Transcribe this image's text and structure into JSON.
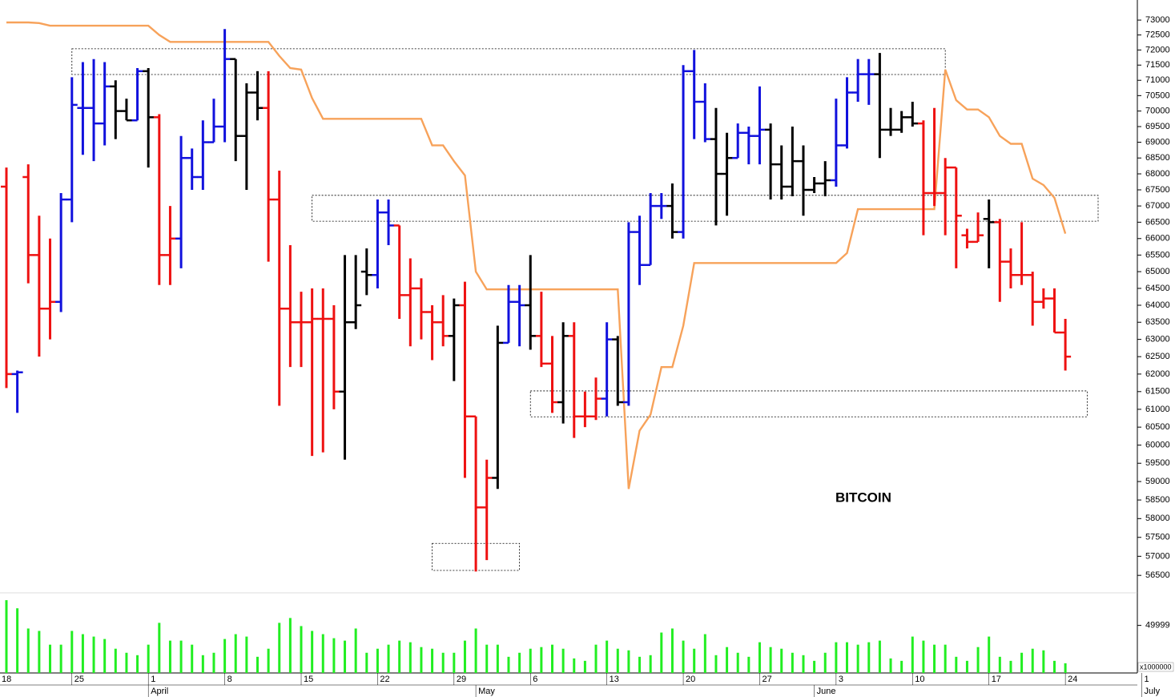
{
  "chart_data": {
    "type": "ohlc",
    "title": "BITCOIN",
    "yscale": "log",
    "ylim": [
      56150,
      73680
    ],
    "yticks": [
      73000,
      72500,
      72000,
      71500,
      71000,
      70500,
      70000,
      69500,
      69000,
      68500,
      68000,
      67500,
      67000,
      66500,
      66000,
      65500,
      65000,
      64500,
      64000,
      63500,
      63000,
      62500,
      62000,
      61500,
      61000,
      60500,
      60000,
      59500,
      59000,
      58500,
      58000,
      57500,
      57000,
      56500
    ],
    "x_ticks": [
      {
        "index": -1,
        "label": "18"
      },
      {
        "index": 6,
        "label": "25"
      },
      {
        "index": 13,
        "label": "1"
      },
      {
        "index": 20,
        "label": "8"
      },
      {
        "index": 27,
        "label": "15"
      },
      {
        "index": 34,
        "label": "22"
      },
      {
        "index": 41,
        "label": "29"
      },
      {
        "index": 48,
        "label": "6"
      },
      {
        "index": 55,
        "label": "13"
      },
      {
        "index": 62,
        "label": "20"
      },
      {
        "index": 69,
        "label": "27"
      },
      {
        "index": 76,
        "label": "3"
      },
      {
        "index": 83,
        "label": "10"
      },
      {
        "index": 90,
        "label": "17"
      },
      {
        "index": 97,
        "label": "24"
      },
      {
        "index": 104,
        "label": "1"
      }
    ],
    "months": [
      {
        "index": 13,
        "label": "April"
      },
      {
        "index": 43,
        "label": "May"
      },
      {
        "index": 74,
        "label": "June"
      },
      {
        "index": 104,
        "label": "July"
      }
    ],
    "open": [
      67600,
      62000,
      67900,
      65500,
      63900,
      64100,
      67200,
      70100,
      70100,
      69600,
      70800,
      70000,
      69700,
      71300,
      69800,
      65500,
      66000,
      68500,
      67900,
      69000,
      69500,
      71700,
      69200,
      70600,
      70100,
      67200,
      63900,
      63500,
      63500,
      63600,
      63600,
      61500,
      63500,
      65000,
      64900,
      66800,
      66400,
      64300,
      64500,
      63800,
      63500,
      63100,
      64000,
      60800,
      58300,
      59100,
      62900,
      64100,
      64000,
      63100,
      62300,
      61200,
      63100,
      60800,
      60800,
      61300,
      63000,
      61200,
      66200,
      65200,
      67000,
      67000,
      66200,
      71300,
      70300,
      69100,
      68000,
      68500,
      69300,
      69200,
      69400,
      68300,
      67600,
      68400,
      67500,
      67700,
      67800,
      68900,
      70600,
      71200,
      71200,
      69400,
      69400,
      69800,
      69600,
      67400,
      67400,
      68200,
      66100,
      65900,
      66600,
      66500,
      65300,
      64900,
      64900,
      64100,
      64200,
      63200
    ],
    "high": [
      68200,
      62100,
      68300,
      66700,
      66000,
      67400,
      71100,
      71600,
      71700,
      71600,
      71000,
      70400,
      71400,
      71400,
      69900,
      67000,
      69200,
      68800,
      69700,
      70400,
      72700,
      71700,
      70900,
      71300,
      71300,
      68100,
      65800,
      64400,
      64500,
      64500,
      64000,
      65500,
      65500,
      65700,
      67200,
      67200,
      66400,
      65400,
      64800,
      64000,
      64300,
      64200,
      64700,
      60800,
      59600,
      63400,
      64600,
      64600,
      65500,
      64400,
      63100,
      63500,
      63500,
      61500,
      61900,
      63500,
      63100,
      66500,
      66700,
      67400,
      67400,
      67700,
      71500,
      72000,
      70900,
      70100,
      69300,
      69600,
      69500,
      70800,
      69600,
      68900,
      69500,
      68900,
      67900,
      68400,
      70400,
      71100,
      71700,
      71700,
      71900,
      70100,
      70000,
      70300,
      69700,
      70100,
      68500,
      68200,
      66300,
      66800,
      67200,
      66600,
      65700,
      66500,
      65000,
      64500,
      64500,
      63600
    ],
    "low": [
      61600,
      60900,
      64650,
      62500,
      63000,
      63800,
      66500,
      68600,
      68400,
      68900,
      69100,
      69700,
      69700,
      68200,
      64600,
      64600,
      65100,
      67500,
      67500,
      69000,
      69000,
      68400,
      67500,
      69700,
      65300,
      61100,
      62200,
      62200,
      59700,
      59800,
      61000,
      59600,
      63300,
      64300,
      64500,
      65800,
      63600,
      62800,
      63000,
      62400,
      62800,
      61800,
      59100,
      56600,
      56900,
      58800,
      62900,
      62800,
      62700,
      62200,
      60900,
      60600,
      60200,
      60500,
      60700,
      60800,
      61100,
      61100,
      64600,
      65200,
      66600,
      66000,
      66000,
      69100,
      69000,
      66400,
      66700,
      68500,
      68300,
      68300,
      67200,
      67200,
      67300,
      66700,
      67400,
      67300,
      67600,
      68800,
      70300,
      70200,
      68500,
      69200,
      69300,
      69500,
      66100,
      67000,
      66100,
      65100,
      65700,
      65900,
      65100,
      64100,
      64500,
      64600,
      63400,
      63900,
      63200,
      62100
    ],
    "close": [
      62000,
      62050,
      65500,
      63900,
      64100,
      67200,
      70200,
      70100,
      69600,
      70800,
      70000,
      69700,
      71300,
      69800,
      65500,
      66000,
      68500,
      67900,
      69000,
      69500,
      71700,
      69200,
      70600,
      70100,
      67200,
      63900,
      63500,
      63500,
      63600,
      63600,
      61500,
      63500,
      64000,
      64900,
      66800,
      66400,
      64300,
      64500,
      63800,
      63500,
      63100,
      64000,
      60800,
      58300,
      59100,
      62900,
      64100,
      64000,
      63100,
      62300,
      61200,
      63100,
      60800,
      60800,
      61300,
      63000,
      61200,
      66200,
      65200,
      67000,
      67000,
      66200,
      71300,
      70300,
      69100,
      68000,
      68500,
      69300,
      69200,
      69400,
      68300,
      67600,
      68400,
      67500,
      67700,
      67800,
      68900,
      70600,
      71200,
      71200,
      69400,
      69400,
      69800,
      69600,
      67400,
      67400,
      68200,
      66700,
      65900,
      66100,
      66500,
      65300,
      64900,
      64900,
      64100,
      64200,
      63200,
      62500
    ],
    "bar_colors": [
      "#ee1111",
      "#1111dd",
      "#ee1111",
      "#ee1111",
      "#ee1111",
      "#1111dd",
      "#1111dd",
      "#1111dd",
      "#1111dd",
      "#1111dd",
      "#000000",
      "#000000",
      "#1111dd",
      "#000000",
      "#ee1111",
      "#ee1111",
      "#1111dd",
      "#1111dd",
      "#1111dd",
      "#1111dd",
      "#1111dd",
      "#000000",
      "#000000",
      "#000000",
      "#ee1111",
      "#ee1111",
      "#ee1111",
      "#ee1111",
      "#ee1111",
      "#ee1111",
      "#ee1111",
      "#000000",
      "#000000",
      "#000000",
      "#1111dd",
      "#1111dd",
      "#ee1111",
      "#ee1111",
      "#ee1111",
      "#ee1111",
      "#ee1111",
      "#000000",
      "#ee1111",
      "#ee1111",
      "#ee1111",
      "#000000",
      "#1111dd",
      "#1111dd",
      "#000000",
      "#ee1111",
      "#ee1111",
      "#000000",
      "#ee1111",
      "#ee1111",
      "#ee1111",
      "#1111dd",
      "#000000",
      "#1111dd",
      "#1111dd",
      "#1111dd",
      "#1111dd",
      "#000000",
      "#1111dd",
      "#1111dd",
      "#1111dd",
      "#000000",
      "#000000",
      "#1111dd",
      "#1111dd",
      "#1111dd",
      "#000000",
      "#000000",
      "#000000",
      "#000000",
      "#000000",
      "#000000",
      "#1111dd",
      "#1111dd",
      "#1111dd",
      "#1111dd",
      "#000000",
      "#000000",
      "#000000",
      "#000000",
      "#ee1111",
      "#ee1111",
      "#ee1111",
      "#ee1111",
      "#ee1111",
      "#ee1111",
      "#000000",
      "#ee1111",
      "#ee1111",
      "#ee1111",
      "#ee1111",
      "#ee1111",
      "#ee1111",
      "#ee1111"
    ],
    "stop_line": {
      "color": "#f7a25a",
      "values": [
        72920,
        72920,
        72920,
        72900,
        72810,
        72810,
        72810,
        72810,
        72810,
        72810,
        72810,
        72810,
        72810,
        72810,
        72500,
        72270,
        72270,
        72270,
        72270,
        72270,
        72270,
        72270,
        72270,
        72270,
        72270,
        71800,
        71400,
        71350,
        70420,
        69750,
        69750,
        69750,
        69750,
        69750,
        69750,
        69750,
        69750,
        69750,
        69750,
        68900,
        68900,
        68400,
        67950,
        65000,
        64470,
        64470,
        64470,
        64470,
        64470,
        64470,
        64470,
        64470,
        64470,
        64470,
        64470,
        64470,
        64470,
        58800,
        60400,
        60850,
        62200,
        62200,
        63400,
        65260,
        65260,
        65260,
        65260,
        65260,
        65260,
        65260,
        65260,
        65260,
        65260,
        65260,
        65260,
        65260,
        65260,
        65560,
        66900,
        66900,
        66900,
        66900,
        66900,
        66900,
        66900,
        66900,
        71350,
        70350,
        70050,
        70050,
        69800,
        69200,
        68950,
        68950,
        67850,
        67650,
        67250,
        66150
      ]
    },
    "zones": [
      {
        "start": 6,
        "end": 86,
        "low": 71190,
        "high": 72040
      },
      {
        "start": 28,
        "end": 100,
        "low": 66530,
        "high": 67330
      },
      {
        "start": 48,
        "end": 99,
        "low": 60790,
        "high": 61520
      },
      {
        "start": 39,
        "end": 47,
        "low": 56630,
        "high": 57340
      }
    ],
    "volume": {
      "color": "#22ee22",
      "unit": "x1000000",
      "ylim": [
        0,
        80000
      ],
      "yticks": [
        49999
      ],
      "values": [
        76500,
        68000,
        46750,
        44200,
        29750,
        29750,
        44200,
        40800,
        38250,
        35700,
        25500,
        21250,
        18700,
        29750,
        52700,
        34000,
        34000,
        29750,
        18700,
        21250,
        35700,
        40800,
        38250,
        17000,
        25500,
        52700,
        57800,
        49300,
        44200,
        40800,
        36550,
        34000,
        46750,
        21250,
        25500,
        29750,
        34000,
        32300,
        27200,
        25500,
        21250,
        21250,
        34000,
        46750,
        29750,
        29750,
        17000,
        21250,
        25500,
        27200,
        29750,
        25500,
        15300,
        12750,
        29750,
        34000,
        25500,
        23800,
        17000,
        18700,
        42500,
        46750,
        34000,
        25500,
        40800,
        18700,
        27200,
        21250,
        17000,
        32300,
        27200,
        25500,
        21250,
        18700,
        12750,
        21250,
        32300,
        32300,
        29750,
        32300,
        34000,
        15300,
        12750,
        38250,
        34000,
        29750,
        29750,
        17000,
        12750,
        27200,
        38250,
        17000,
        12750,
        21250,
        25500,
        23800,
        12750,
        10200
      ]
    }
  }
}
